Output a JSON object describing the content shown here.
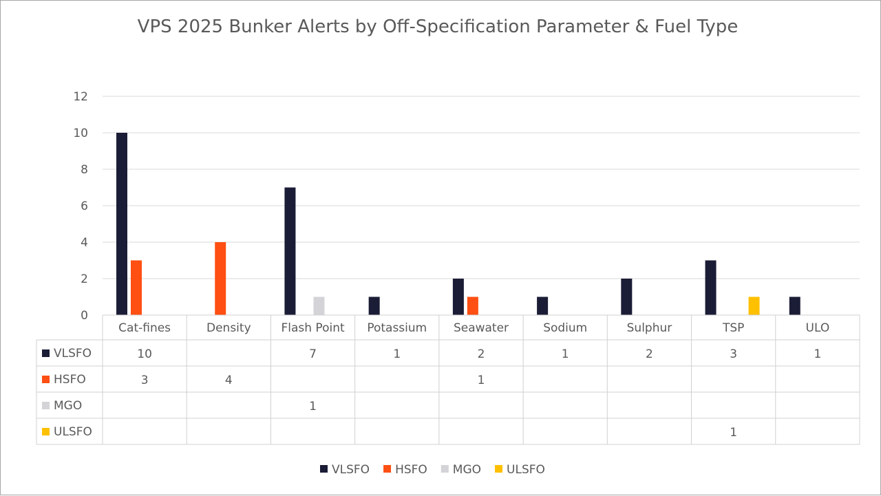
{
  "chart_data": {
    "type": "bar",
    "title": "VPS 2025 Bunker Alerts by Off-Specification Parameter & Fuel Type",
    "categories": [
      "Cat-fines",
      "Density",
      "Flash Point",
      "Potassium",
      "Seawater",
      "Sodium",
      "Sulphur",
      "TSP",
      "ULO"
    ],
    "series": [
      {
        "name": "VLSFO",
        "color": "#1b1c36",
        "values": [
          10,
          null,
          7,
          1,
          2,
          1,
          2,
          3,
          1
        ]
      },
      {
        "name": "HSFO",
        "color": "#ff4f12",
        "values": [
          3,
          4,
          null,
          null,
          1,
          null,
          null,
          null,
          null
        ]
      },
      {
        "name": "MGO",
        "color": "#d4d4d8",
        "values": [
          null,
          null,
          1,
          null,
          null,
          null,
          null,
          null,
          null
        ]
      },
      {
        "name": "ULSFO",
        "color": "#ffc000",
        "values": [
          null,
          null,
          null,
          null,
          null,
          null,
          null,
          1,
          null
        ]
      }
    ],
    "y_ticks": [
      "0",
      "2",
      "4",
      "6",
      "8",
      "10",
      "12"
    ],
    "ylim": [
      0,
      12
    ],
    "grid": true,
    "data_table": true,
    "legend_position": "bottom"
  }
}
